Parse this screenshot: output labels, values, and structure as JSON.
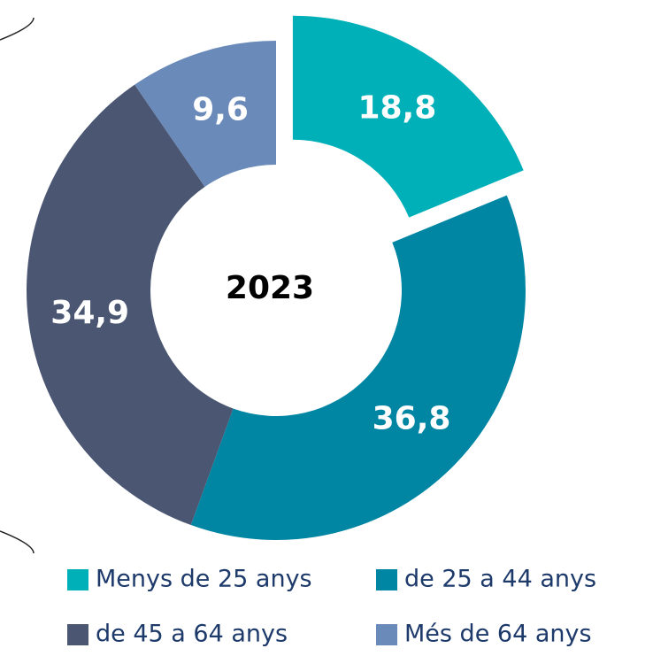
{
  "chart_data": {
    "type": "donut",
    "center_label": "2023",
    "categories": [
      "Menys de 25 anys",
      "de 25 a 44 anys",
      "de 45 a 64 anys",
      "Més de 64 anys"
    ],
    "values": [
      18.8,
      36.8,
      34.9,
      9.6
    ],
    "value_labels": [
      "18,8",
      "36,8",
      "34,9",
      "9,6"
    ],
    "colors": [
      "#00b0b9",
      "#0086a3",
      "#4a5672",
      "#6a8bba"
    ],
    "exploded": [
      true,
      false,
      false,
      false
    ]
  }
}
